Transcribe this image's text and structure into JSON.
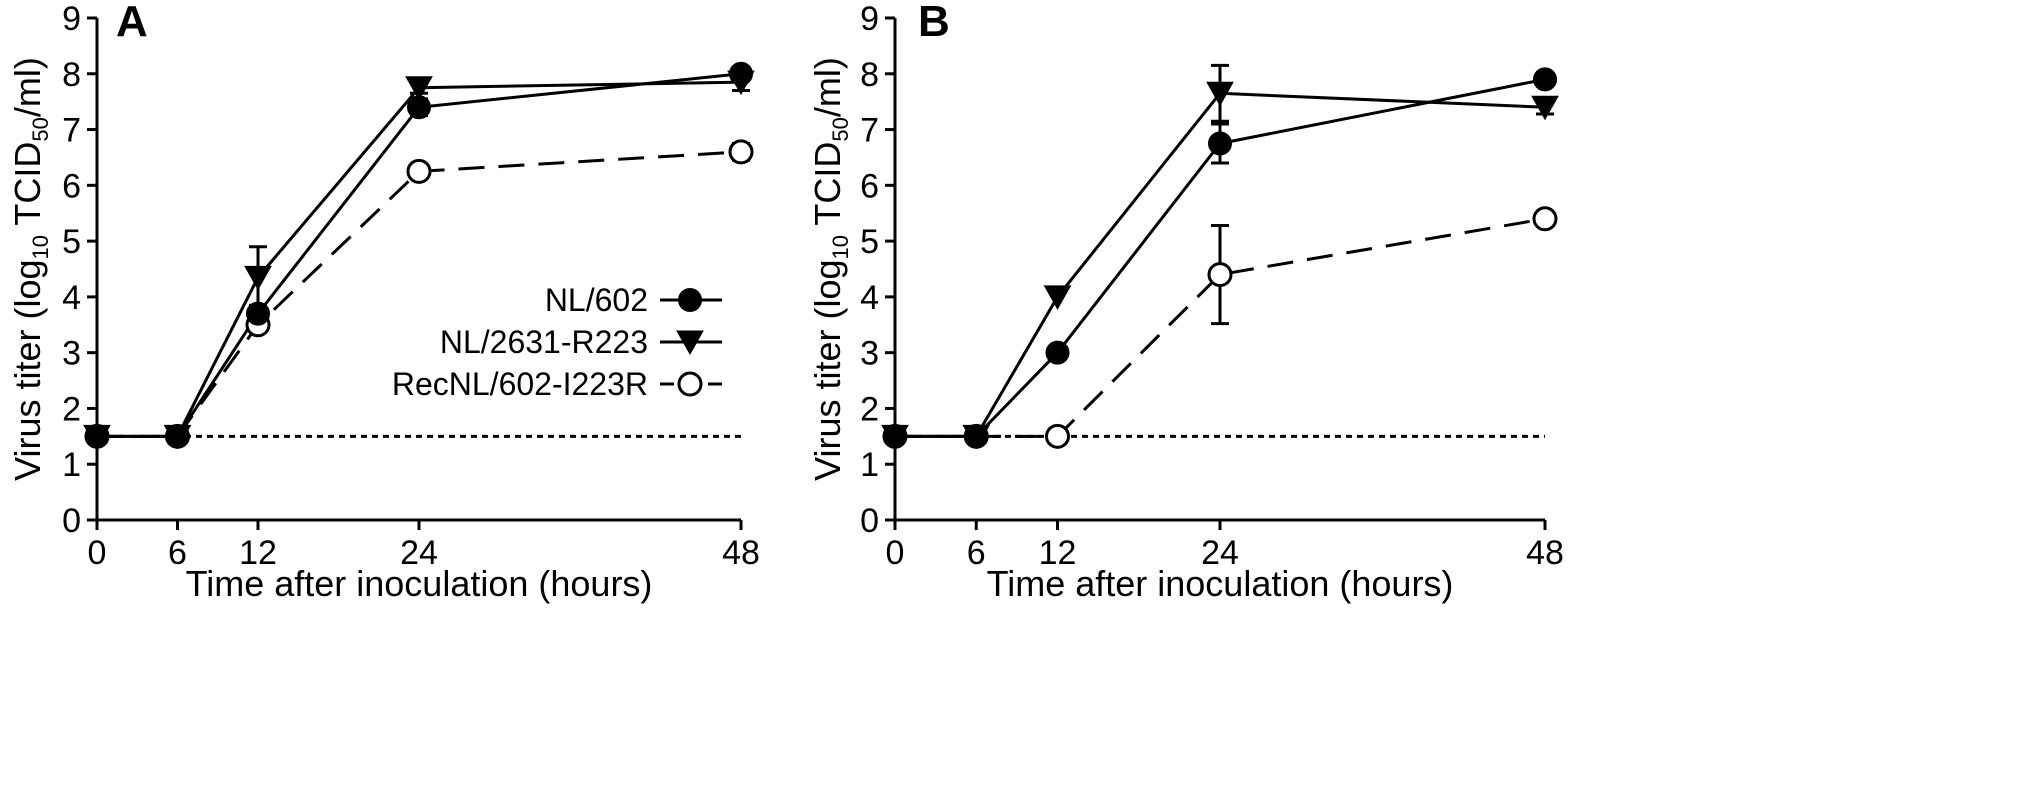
{
  "figure": {
    "colors": {
      "ink": "#000000",
      "open_fill": "#ffffff"
    },
    "legend": {
      "entries": [
        {
          "label": "NL/602",
          "marker": "filled-circle",
          "line": "solid"
        },
        {
          "label": "NL/2631-R223",
          "marker": "filled-triangle-down",
          "line": "solid"
        },
        {
          "label": "RecNL/602-I223R",
          "marker": "open-circle",
          "line": "dashed"
        }
      ]
    }
  },
  "chart_data": [
    {
      "type": "line",
      "panel": "A",
      "xlabel": "Time after inoculation (hours)",
      "ylabel": {
        "prefix": "Virus titer (log",
        "sub1": "10",
        "mid": " TCID",
        "sub2": "50",
        "suffix": "/ml)"
      },
      "x": [
        0,
        6,
        12,
        24,
        48
      ],
      "xticks": [
        "0",
        "6",
        "12",
        "24",
        "48"
      ],
      "yticks": [
        "0",
        "1",
        "2",
        "3",
        "4",
        "5",
        "6",
        "7",
        "8",
        "9"
      ],
      "ylim": [
        0,
        9
      ],
      "detection_limit": 1.5,
      "series": [
        {
          "name": "NL/602",
          "marker": "filled-circle",
          "line": "solid",
          "values": [
            1.5,
            1.5,
            3.7,
            7.4,
            8.0
          ],
          "errors": [
            0,
            0,
            0.15,
            0.15,
            0.1
          ]
        },
        {
          "name": "NL/2631-R223",
          "marker": "filled-triangle-down",
          "line": "solid",
          "values": [
            1.5,
            1.5,
            4.35,
            7.75,
            7.85
          ],
          "errors": [
            0,
            0,
            0.55,
            0.1,
            0.15
          ]
        },
        {
          "name": "RecNL/602-I223R",
          "marker": "open-circle",
          "line": "dashed",
          "values": [
            1.5,
            1.5,
            3.5,
            6.25,
            6.6
          ],
          "errors": [
            0,
            0,
            0.1,
            0.1,
            0.15
          ]
        }
      ]
    },
    {
      "type": "line",
      "panel": "B",
      "xlabel": "Time after inoculation (hours)",
      "ylabel": {
        "prefix": "Virus titer (log",
        "sub1": "10",
        "mid": " TCID",
        "sub2": "50",
        "suffix": "/ml)"
      },
      "x": [
        0,
        6,
        12,
        24,
        48
      ],
      "xticks": [
        "0",
        "6",
        "12",
        "24",
        "48"
      ],
      "yticks": [
        "0",
        "1",
        "2",
        "3",
        "4",
        "5",
        "6",
        "7",
        "8",
        "9"
      ],
      "ylim": [
        0,
        9
      ],
      "detection_limit": 1.5,
      "series": [
        {
          "name": "NL/602",
          "marker": "filled-circle",
          "line": "solid",
          "values": [
            1.5,
            1.5,
            3.0,
            6.75,
            7.9
          ],
          "errors": [
            0,
            0,
            0,
            0.35,
            0.12
          ]
        },
        {
          "name": "NL/2631-R223",
          "marker": "filled-triangle-down",
          "line": "solid",
          "values": [
            1.5,
            1.5,
            4.0,
            7.65,
            7.4
          ],
          "errors": [
            0,
            0,
            0,
            0.5,
            0.12
          ]
        },
        {
          "name": "RecNL/602-I223R",
          "marker": "open-circle",
          "line": "dashed",
          "values": [
            1.5,
            1.5,
            1.5,
            4.4,
            5.4
          ],
          "errors": [
            0,
            0,
            0,
            0.88,
            0.12
          ]
        }
      ]
    }
  ]
}
